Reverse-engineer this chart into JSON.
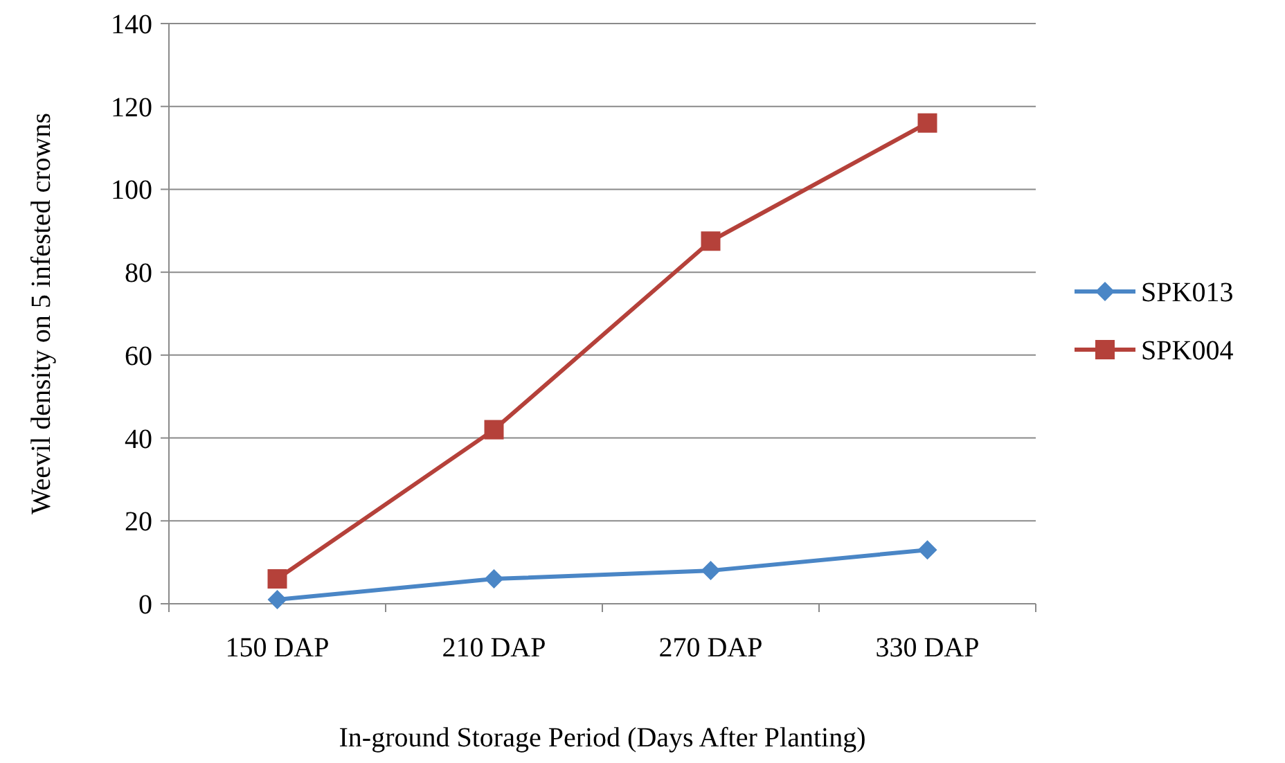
{
  "chart_data": {
    "type": "line",
    "xlabel": "In-ground Storage Period (Days After Planting)",
    "ylabel": "Weevil density on 5 infested crowns",
    "categories": [
      "150 DAP",
      "210 DAP",
      "270 DAP",
      "330 DAP"
    ],
    "series": [
      {
        "name": "SPK013",
        "color": "#4a86c6",
        "marker": "diamond",
        "values": [
          1,
          6,
          8,
          13
        ]
      },
      {
        "name": "SPK004",
        "color": "#b5413a",
        "marker": "square",
        "values": [
          6,
          42,
          87.5,
          116
        ]
      }
    ],
    "ylim": [
      0,
      140
    ],
    "yticks": [
      0,
      20,
      40,
      60,
      80,
      100,
      120,
      140
    ],
    "grid": "y",
    "legend": "right"
  }
}
